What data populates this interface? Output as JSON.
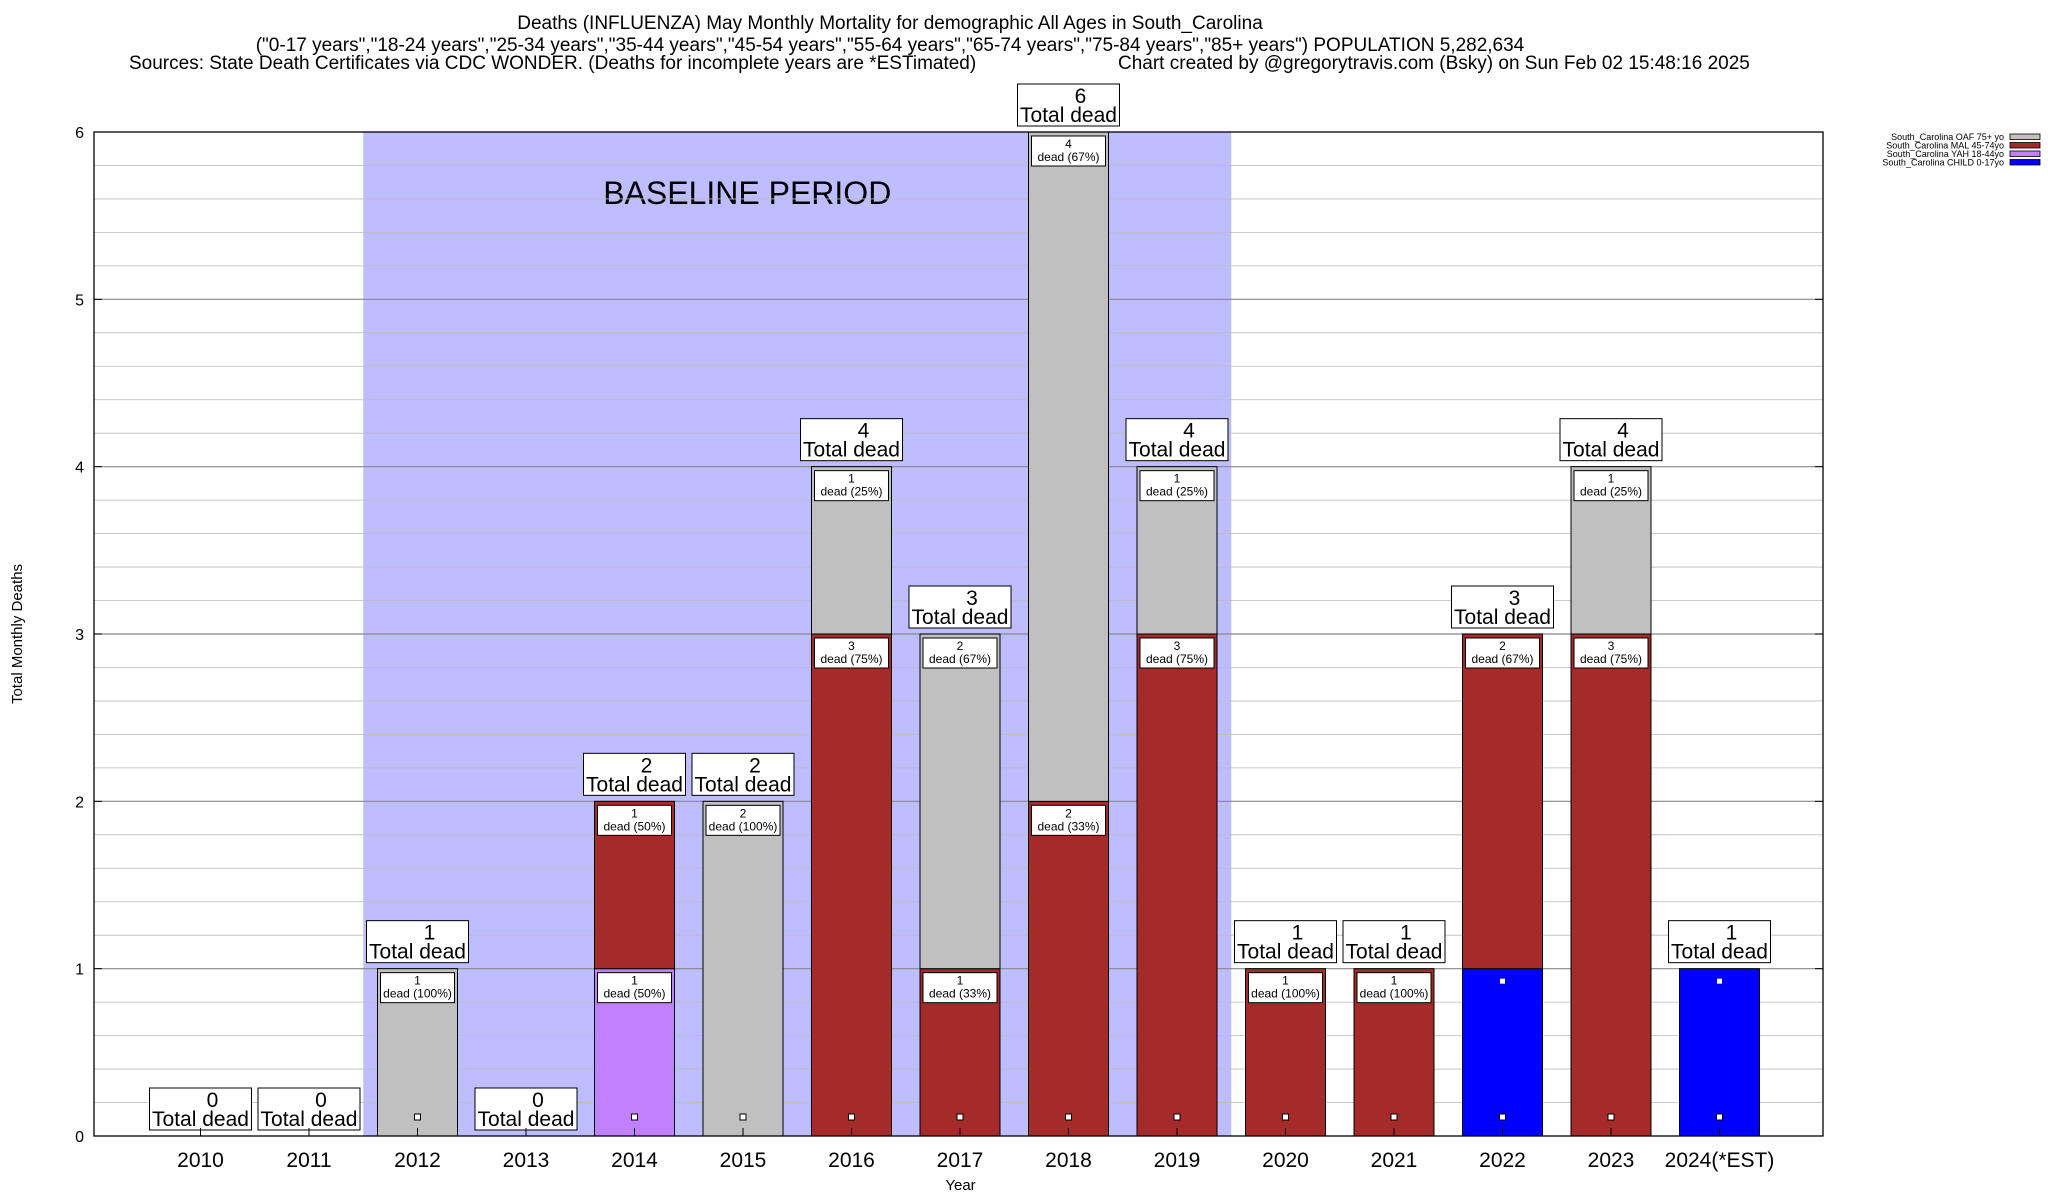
{
  "header": {
    "title_line1": "Deaths (INFLUENZA) May Monthly Mortality for demographic All Ages in South_Carolina",
    "title_line2": "(\"0-17 years\",\"18-24 years\",\"25-34 years\",\"35-44 years\",\"45-54 years\",\"55-64 years\",\"65-74 years\",\"75-84 years\",\"85+ years\") POPULATION 5,282,634",
    "sources": "Sources: State Death Certificates via CDC WONDER. (Deaths for incomplete years are *ESTimated)",
    "credit": "Chart created by @gregorytravis.com (Bsky) on Sun Feb 02 15:48:16 2025"
  },
  "chart_data": {
    "type": "bar",
    "stacked": true,
    "xlabel": "Year",
    "ylabel": "Total Monthly Deaths",
    "ylim": [
      0,
      6
    ],
    "yticks": [
      0,
      1,
      2,
      3,
      4,
      5,
      6
    ],
    "grid": true,
    "legend_position": "top-right",
    "categories": [
      "2010",
      "2011",
      "2012",
      "2013",
      "2014",
      "2015",
      "2016",
      "2017",
      "2018",
      "2019",
      "2020",
      "2021",
      "2022",
      "2023",
      "2024(*EST)"
    ],
    "series": [
      {
        "name": "South_Carolina CHILD 0-17yo",
        "color": "#0000ff",
        "values": [
          0,
          0,
          0,
          0,
          0,
          0,
          0,
          0,
          0,
          0,
          0,
          0,
          1,
          0,
          1
        ]
      },
      {
        "name": "South_Carolina YAH 18-44yo",
        "color": "#c080ff",
        "values": [
          0,
          0,
          0,
          0,
          1,
          0,
          0,
          0,
          0,
          0,
          0,
          0,
          0,
          0,
          0
        ]
      },
      {
        "name": "South_Carolina MAL 45-74yo",
        "color": "#a52a2a",
        "values": [
          0,
          0,
          0,
          0,
          1,
          0,
          3,
          1,
          2,
          3,
          1,
          1,
          2,
          3,
          0
        ]
      },
      {
        "name": "South_Carolina OAF 75+ yo",
        "color": "#c0c0c0",
        "values": [
          0,
          0,
          1,
          0,
          0,
          2,
          1,
          2,
          4,
          1,
          0,
          0,
          0,
          1,
          0
        ]
      }
    ],
    "totals": [
      0,
      0,
      1,
      0,
      2,
      2,
      4,
      3,
      6,
      4,
      1,
      1,
      3,
      4,
      1
    ],
    "total_suffix": "Total dead",
    "segment_labels": [
      {
        "category": "2012",
        "series": "South_Carolina OAF 75+ yo",
        "count": "1",
        "pct": "dead (100%)"
      },
      {
        "category": "2014",
        "series": "South_Carolina YAH 18-44yo",
        "count": "1",
        "pct": "dead (50%)"
      },
      {
        "category": "2014",
        "series": "South_Carolina MAL 45-74yo",
        "count": "1",
        "pct": "dead (50%)"
      },
      {
        "category": "2015",
        "series": "South_Carolina OAF 75+ yo",
        "count": "2",
        "pct": "dead (100%)"
      },
      {
        "category": "2016",
        "series": "South_Carolina MAL 45-74yo",
        "count": "3",
        "pct": "dead (75%)"
      },
      {
        "category": "2016",
        "series": "South_Carolina OAF 75+ yo",
        "count": "1",
        "pct": "dead (25%)"
      },
      {
        "category": "2017",
        "series": "South_Carolina MAL 45-74yo",
        "count": "1",
        "pct": "dead (33%)"
      },
      {
        "category": "2017",
        "series": "South_Carolina OAF 75+ yo",
        "count": "2",
        "pct": "dead (67%)"
      },
      {
        "category": "2018",
        "series": "South_Carolina MAL 45-74yo",
        "count": "2",
        "pct": "dead (33%)"
      },
      {
        "category": "2018",
        "series": "South_Carolina OAF 75+ yo",
        "count": "4",
        "pct": "dead (67%)"
      },
      {
        "category": "2019",
        "series": "South_Carolina MAL 45-74yo",
        "count": "3",
        "pct": "dead (75%)"
      },
      {
        "category": "2019",
        "series": "South_Carolina OAF 75+ yo",
        "count": "1",
        "pct": "dead (25%)"
      },
      {
        "category": "2020",
        "series": "South_Carolina MAL 45-74yo",
        "count": "1",
        "pct": "dead (100%)"
      },
      {
        "category": "2021",
        "series": "South_Carolina MAL 45-74yo",
        "count": "1",
        "pct": "dead (100%)"
      },
      {
        "category": "2022",
        "series": "South_Carolina MAL 45-74yo",
        "count": "2",
        "pct": "dead (67%)"
      },
      {
        "category": "2023",
        "series": "South_Carolina MAL 45-74yo",
        "count": "3",
        "pct": "dead (75%)"
      },
      {
        "category": "2023",
        "series": "South_Carolina OAF 75+ yo",
        "count": "1",
        "pct": "dead (25%)"
      }
    ],
    "baseline": {
      "label": "BASELINE PERIOD",
      "from": "2012",
      "to": "2019",
      "color": "#bdbdff"
    },
    "legend_order": [
      "South_Carolina OAF 75+ yo",
      "South_Carolina MAL 45-74yo",
      "South_Carolina YAH 18-44yo",
      "South_Carolina CHILD 0-17yo"
    ]
  }
}
